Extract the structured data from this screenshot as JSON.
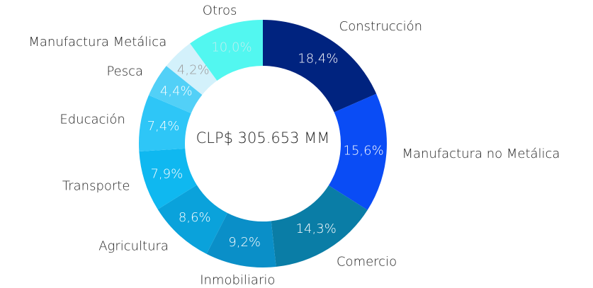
{
  "chart_data": {
    "type": "donut",
    "center_label": "CLP$ 305.653 MM",
    "categories": [
      "Construcción",
      "Manufactura no Metálica",
      "Comercio",
      "Inmobiliario",
      "Agricultura",
      "Transporte",
      "Educación",
      "Pesca",
      "Manufactura Metálica",
      "Otros"
    ],
    "values": [
      18.4,
      15.6,
      14.3,
      9.2,
      8.6,
      7.9,
      7.4,
      4.4,
      4.2,
      10.0
    ],
    "value_labels": [
      "18,4%",
      "15,6%",
      "14,3%",
      "9,2%",
      "8,6%",
      "7,9%",
      "7,4%",
      "4,4%",
      "4,2%",
      "10,0%"
    ],
    "colors": [
      "#00237f",
      "#0a4cf5",
      "#0a7da6",
      "#0a8fc8",
      "#0aa2db",
      "#0fb8f0",
      "#2ec6f7",
      "#52d0f7",
      "#d3f1fb",
      "#52f7f0"
    ]
  }
}
